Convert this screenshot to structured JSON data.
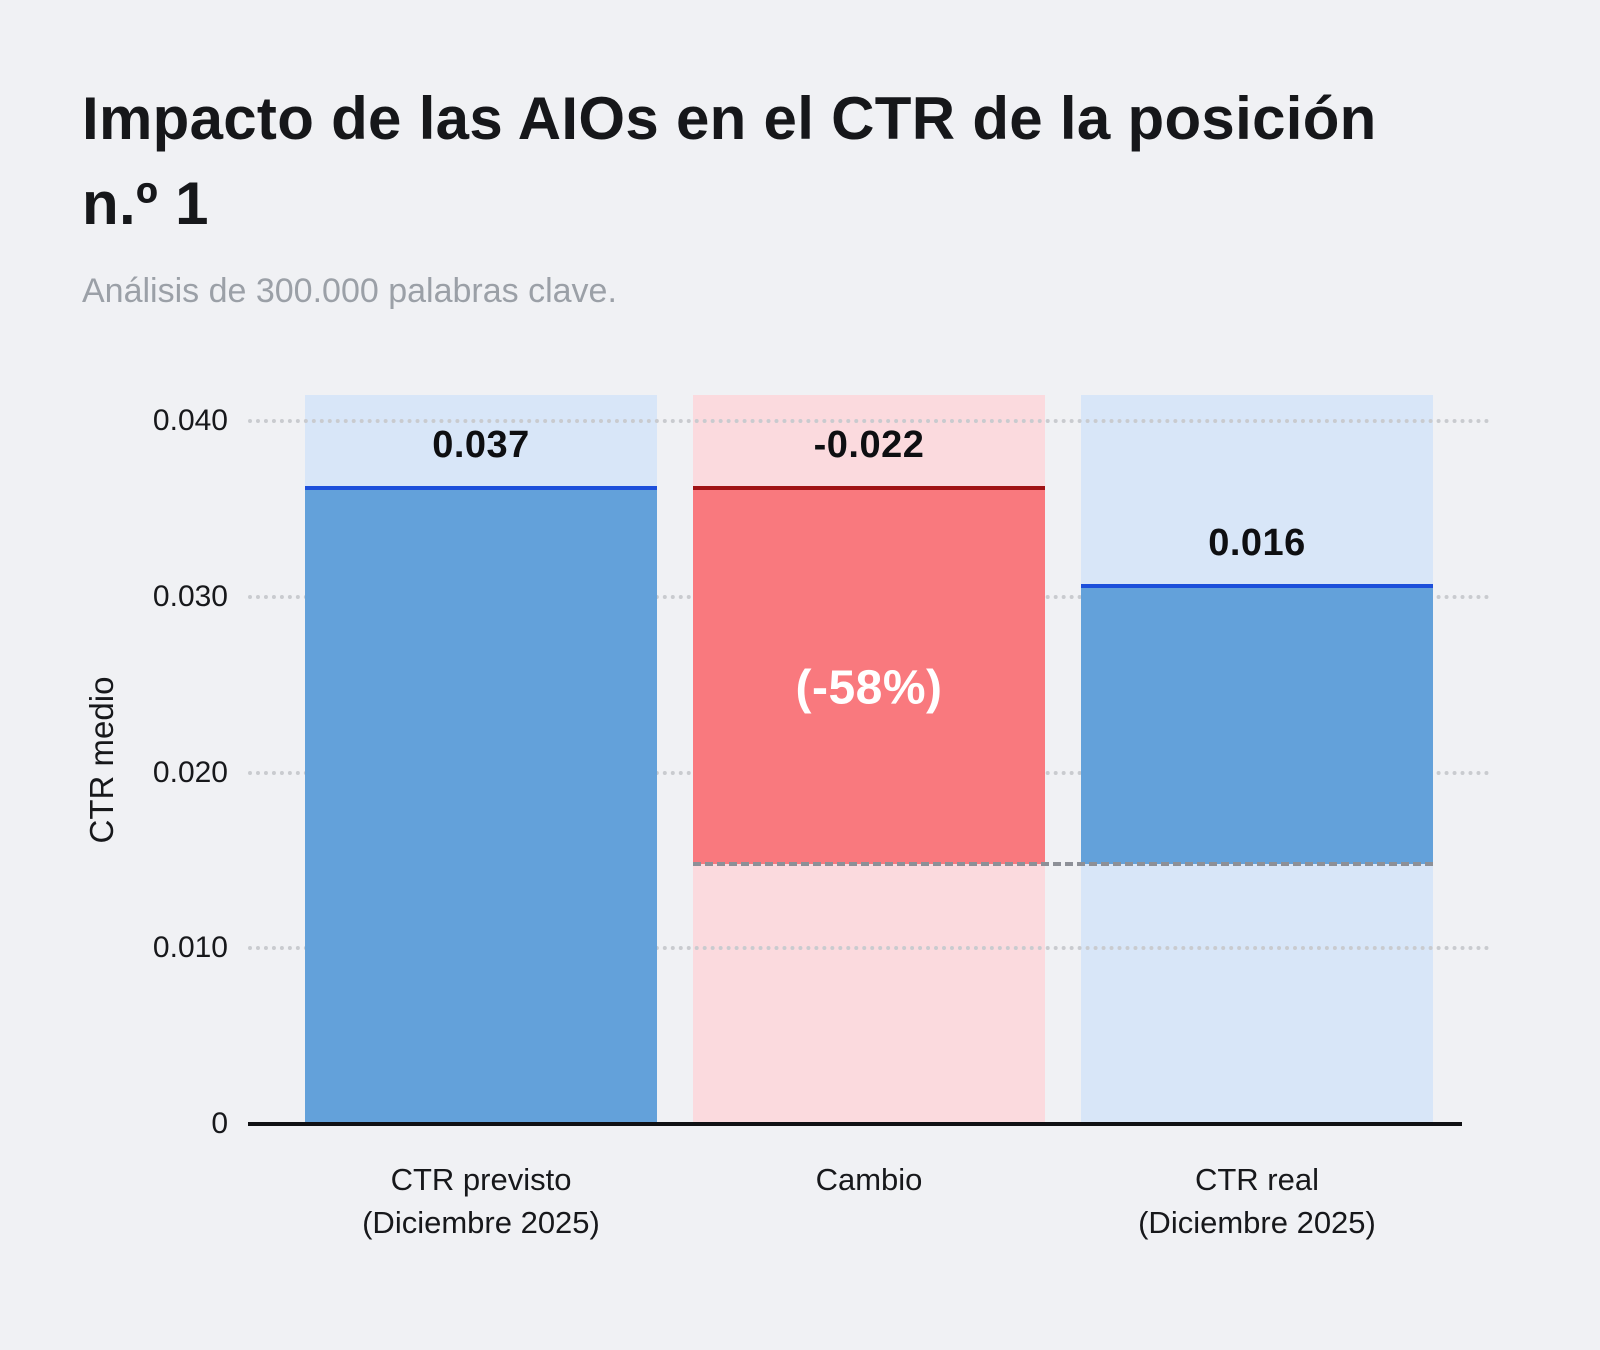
{
  "chart_data": {
    "type": "bar",
    "variant": "waterfall",
    "title": "Impacto de las AIOs en el CTR de la posición n.º 1",
    "subtitle": "Análisis de 300.000 palabras clave.",
    "ylabel": "CTR medio",
    "xlabel": "",
    "ylim": [
      0,
      0.0415
    ],
    "grid": "horizontal dotted",
    "legend": "none",
    "yticks": [
      0,
      0.01,
      0.02,
      0.03,
      0.04
    ],
    "ytick_labels": [
      "0",
      "0.010",
      "0.020",
      "0.030",
      "0.040"
    ],
    "baseline": {
      "value": 0.015,
      "draw_value": 0.0148,
      "style": "dashed",
      "color": "#8d9097",
      "spans_columns": [
        1,
        2
      ]
    },
    "columns": [
      {
        "category": "CTR previsto (Diciembre 2025)",
        "label_lines": [
          "CTR previsto",
          "(Diciembre 2025)"
        ],
        "value": 0.037,
        "value_label": "0.037",
        "draw_from": 0,
        "draw_to": 0.0362,
        "bar_color": "#63a1da",
        "tint_color": "#d8e6f8",
        "top_line_color": "#1c4fdb",
        "inner_label": ""
      },
      {
        "category": "Cambio",
        "label_lines": [
          "Cambio"
        ],
        "value": -0.022,
        "value_label": "-0.022",
        "draw_from": 0.0148,
        "draw_to": 0.0362,
        "bar_color": "#f9797e",
        "tint_color": "#fbdade",
        "top_line_color": "#a01214",
        "inner_label": "(-58%)"
      },
      {
        "category": "CTR real (Diciembre 2025)",
        "label_lines": [
          "CTR real",
          "(Diciembre 2025)"
        ],
        "value": 0.016,
        "value_label": "0.016",
        "draw_from": 0.0148,
        "draw_to": 0.0306,
        "bar_color": "#63a1da",
        "tint_color": "#d8e6f8",
        "top_line_color": "#1c4fdb",
        "inner_label": ""
      }
    ]
  },
  "colors": {
    "background": "#f0f1f4",
    "title_text": "#16171a",
    "subtitle_text": "#9ba0a7",
    "axis": "#101114",
    "gridline": "#c9cbcf"
  }
}
